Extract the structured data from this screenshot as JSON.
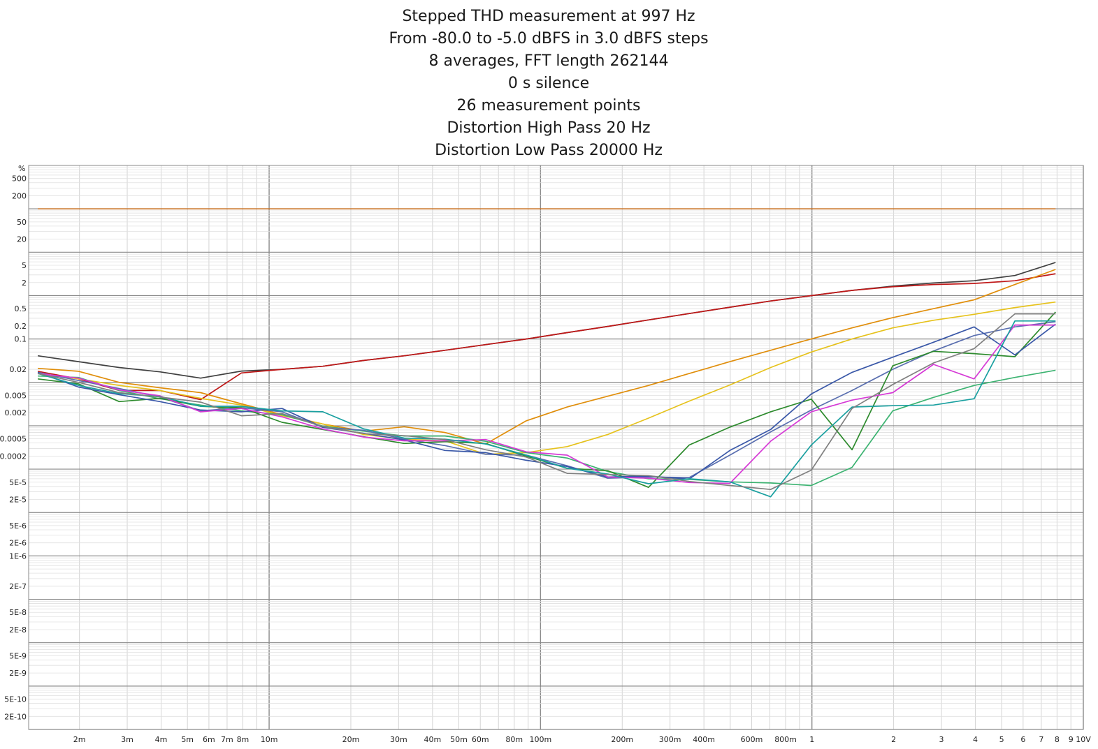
{
  "chart_data": {
    "type": "line",
    "title_lines": [
      "Stepped THD measurement at 997 Hz",
      "From -80.0 to -5.0 dBFS in 3.0 dBFS steps",
      "8 averages, FFT length 262144",
      "0 s silence",
      "26 measurement points",
      "Distortion High Pass 20 Hz",
      "Distortion Low Pass 20000 Hz"
    ],
    "ylabel": "%",
    "xscale": "log",
    "yscale": "log",
    "xlim": [
      0.0013,
      10
    ],
    "ylim": [
      1e-10,
      1000
    ],
    "grid": true,
    "x_ticks": [
      {
        "v": 0.002,
        "label": "2m"
      },
      {
        "v": 0.003,
        "label": "3m"
      },
      {
        "v": 0.004,
        "label": "4m"
      },
      {
        "v": 0.005,
        "label": "5m"
      },
      {
        "v": 0.006,
        "label": "6m"
      },
      {
        "v": 0.007,
        "label": "7m"
      },
      {
        "v": 0.008,
        "label": "8m"
      },
      {
        "v": 0.01,
        "label": "10m"
      },
      {
        "v": 0.02,
        "label": "20m"
      },
      {
        "v": 0.03,
        "label": "30m"
      },
      {
        "v": 0.04,
        "label": "40m"
      },
      {
        "v": 0.05,
        "label": "50m"
      },
      {
        "v": 0.06,
        "label": "60m"
      },
      {
        "v": 0.08,
        "label": "80m"
      },
      {
        "v": 0.1,
        "label": "100m"
      },
      {
        "v": 0.2,
        "label": "200m"
      },
      {
        "v": 0.3,
        "label": "300m"
      },
      {
        "v": 0.4,
        "label": "400m"
      },
      {
        "v": 0.6,
        "label": "600m"
      },
      {
        "v": 0.8,
        "label": "800m"
      },
      {
        "v": 1,
        "label": "1"
      },
      {
        "v": 2,
        "label": "2"
      },
      {
        "v": 3,
        "label": "3"
      },
      {
        "v": 4,
        "label": "4"
      },
      {
        "v": 5,
        "label": "5"
      },
      {
        "v": 6,
        "label": "6"
      },
      {
        "v": 7,
        "label": "7"
      },
      {
        "v": 8,
        "label": "8"
      },
      {
        "v": 9,
        "label": "9"
      },
      {
        "v": 10,
        "label": "10V"
      }
    ],
    "y_ticks": [
      {
        "v": 500,
        "label": "500"
      },
      {
        "v": 200,
        "label": "200"
      },
      {
        "v": 50,
        "label": "50"
      },
      {
        "v": 20,
        "label": "20"
      },
      {
        "v": 5,
        "label": "5"
      },
      {
        "v": 2,
        "label": "2"
      },
      {
        "v": 0.5,
        "label": "0.5"
      },
      {
        "v": 0.2,
        "label": "0.2"
      },
      {
        "v": 0.1,
        "label": "0.1"
      },
      {
        "v": 0.02,
        "label": "0.02"
      },
      {
        "v": 0.005,
        "label": "0.005"
      },
      {
        "v": 0.002,
        "label": "0.002"
      },
      {
        "v": 0.0005,
        "label": "0.0005"
      },
      {
        "v": 0.0002,
        "label": "0.0002"
      },
      {
        "v": 5e-05,
        "label": "5E-5"
      },
      {
        "v": 2e-05,
        "label": "2E-5"
      },
      {
        "v": 5e-06,
        "label": "5E-6"
      },
      {
        "v": 2e-06,
        "label": "2E-6"
      },
      {
        "v": 1e-06,
        "label": "1E-6"
      },
      {
        "v": 2e-07,
        "label": "2E-7"
      },
      {
        "v": 5e-08,
        "label": "5E-8"
      },
      {
        "v": 2e-08,
        "label": "2E-8"
      },
      {
        "v": 5e-09,
        "label": "5E-9"
      },
      {
        "v": 2e-09,
        "label": "2E-9"
      },
      {
        "v": 5e-10,
        "label": "5E-10"
      },
      {
        "v": 2e-10,
        "label": "2E-10"
      }
    ],
    "x_points": [
      0.001405,
      0.001985,
      0.002804,
      0.00396,
      0.005594,
      0.007902,
      0.011162,
      0.015767,
      0.022272,
      0.031461,
      0.04444,
      0.062774,
      0.088673,
      0.125256,
      0.176931,
      0.249924,
      0.353031,
      0.498675,
      0.704406,
      0.995014,
      1.405529,
      1.98541,
      2.804527,
      3.961579,
      5.596008,
      7.904715
    ],
    "series": [
      {
        "color": "#c87022",
        "values": [
          100,
          100,
          100,
          100,
          100,
          100,
          100,
          100,
          100,
          100,
          100,
          100,
          100,
          100,
          100,
          100,
          100,
          100,
          100,
          100,
          100,
          100,
          100,
          100,
          100,
          100
        ]
      },
      {
        "color": "#404040",
        "values": [
          0.041,
          0.03,
          0.022,
          0.0175,
          0.0125,
          0.0182,
          0.02,
          0.0235,
          0.032,
          0.041,
          0.055,
          0.074,
          0.1,
          0.14,
          0.195,
          0.275,
          0.385,
          0.54,
          0.75,
          1.0,
          1.32,
          1.65,
          1.95,
          2.2,
          2.9,
          5.8
        ]
      },
      {
        "color": "#c01818",
        "values": [
          0.018,
          0.012,
          0.0065,
          0.0065,
          0.004,
          0.0165,
          0.02,
          0.0235,
          0.032,
          0.041,
          0.055,
          0.074,
          0.1,
          0.14,
          0.195,
          0.275,
          0.385,
          0.54,
          0.75,
          1.0,
          1.32,
          1.6,
          1.8,
          1.9,
          2.2,
          3.2
        ]
      },
      {
        "color": "#e08e0b",
        "values": [
          0.021,
          0.018,
          0.01,
          0.0075,
          0.0058,
          0.0032,
          0.0018,
          0.0011,
          0.00075,
          0.00095,
          0.0007,
          0.00038,
          0.0013,
          0.0027,
          0.0048,
          0.0085,
          0.016,
          0.03,
          0.055,
          0.1,
          0.18,
          0.31,
          0.5,
          0.8,
          1.8,
          4.0
        ]
      },
      {
        "color": "#e6c21c",
        "values": [
          0.016,
          0.012,
          0.0085,
          0.0065,
          0.0043,
          0.003,
          0.0017,
          0.0011,
          0.00063,
          0.00049,
          0.00045,
          0.00022,
          0.00024,
          0.00033,
          0.00063,
          0.0015,
          0.0037,
          0.0087,
          0.022,
          0.05,
          0.1,
          0.18,
          0.27,
          0.37,
          0.53,
          0.71
        ]
      },
      {
        "color": "#3cb371",
        "values": [
          0.014,
          0.013,
          0.0065,
          0.0042,
          0.003,
          0.0022,
          0.0018,
          0.00098,
          0.00075,
          0.00058,
          0.00058,
          0.00044,
          0.00024,
          0.00018,
          8.8e-05,
          6e-05,
          5.8e-05,
          5.1e-05,
          4.8e-05,
          4.2e-05,
          0.00011,
          0.0022,
          0.0045,
          0.0085,
          0.013,
          0.019
        ]
      },
      {
        "color": "#5a6fb0",
        "values": [
          0.017,
          0.011,
          0.0072,
          0.0046,
          0.0022,
          0.0026,
          0.0021,
          0.00092,
          0.00079,
          0.00049,
          0.00035,
          0.00022,
          0.00021,
          0.00012,
          6.2e-05,
          6.6e-05,
          6.4e-05,
          0.00021,
          0.00072,
          0.0023,
          0.0065,
          0.02,
          0.053,
          0.12,
          0.19,
          0.25
        ]
      },
      {
        "color": "#2e8b2e",
        "values": [
          0.012,
          0.0092,
          0.0036,
          0.0043,
          0.0028,
          0.0026,
          0.0012,
          0.00082,
          0.00056,
          0.00039,
          0.00043,
          0.00039,
          0.0002,
          0.000105,
          9.2e-05,
          3.8e-05,
          0.00036,
          0.00093,
          0.0021,
          0.0041,
          0.00028,
          0.024,
          0.052,
          0.046,
          0.039,
          0.42
        ]
      },
      {
        "color": "#3a58a8",
        "values": [
          0.017,
          0.0078,
          0.0052,
          0.0036,
          0.0023,
          0.0021,
          0.0025,
          0.00092,
          0.00067,
          0.00047,
          0.00027,
          0.00024,
          0.00016,
          0.000115,
          6.6e-05,
          6.9e-05,
          5.9e-05,
          0.00027,
          0.00082,
          0.0054,
          0.017,
          0.038,
          0.084,
          0.19,
          0.043,
          0.22
        ]
      },
      {
        "color": "#d63ad6",
        "values": [
          0.016,
          0.0125,
          0.0067,
          0.0049,
          0.0021,
          0.0025,
          0.0016,
          0.00084,
          0.00055,
          0.00045,
          0.00045,
          0.00048,
          0.00025,
          0.00021,
          6.6e-05,
          6.2e-05,
          4.9e-05,
          4.7e-05,
          0.00044,
          0.0021,
          0.0039,
          0.0058,
          0.026,
          0.012,
          0.21,
          0.21
        ]
      },
      {
        "color": "#1aa0a0",
        "values": [
          0.016,
          0.0085,
          0.0055,
          0.0047,
          0.0028,
          0.0028,
          0.0022,
          0.0021,
          0.00085,
          0.00052,
          0.00049,
          0.00038,
          0.00021,
          0.000105,
          7.7e-05,
          4.6e-05,
          6e-05,
          5.1e-05,
          2.3e-05,
          0.00036,
          0.0027,
          0.0029,
          0.003,
          0.0042,
          0.26,
          0.26
        ]
      },
      {
        "color": "#808080",
        "values": [
          0.016,
          0.01,
          0.0058,
          0.0046,
          0.0035,
          0.0017,
          0.0019,
          0.00096,
          0.00066,
          0.00059,
          0.00048,
          0.00028,
          0.00019,
          8e-05,
          7.5e-05,
          7.1e-05,
          5.2e-05,
          4.2e-05,
          3.4e-05,
          9.5e-05,
          0.0025,
          0.0089,
          0.028,
          0.06,
          0.38,
          0.38
        ]
      }
    ]
  }
}
